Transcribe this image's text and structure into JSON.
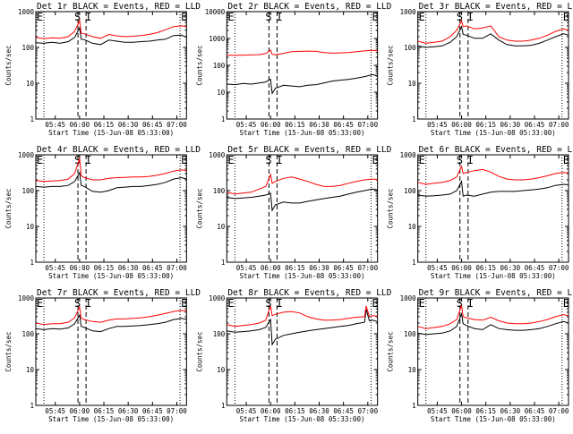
{
  "figure": {
    "colors": {
      "events": "#000000",
      "lld": "#ff0000",
      "background": "#ffffff"
    }
  },
  "chart_data": [
    {
      "type": "line",
      "title": "Det 1r  BLACK = Events, RED = LLD",
      "xlabel": "Start Time (15-Jun-08 05:33:00)",
      "ylabel": "Counts/sec",
      "yscale": "log",
      "ylim": [
        1,
        1000
      ],
      "x_ticks": [
        "05:45",
        "06:00",
        "06:15",
        "06:30",
        "06:45",
        "07:00"
      ],
      "y_ticks": [
        "1",
        "10",
        "100",
        "1000"
      ],
      "x_minutes_from_start": [
        0,
        5,
        10,
        15,
        20,
        24,
        27,
        28,
        30,
        35,
        40,
        45,
        50,
        55,
        60,
        65,
        70,
        75,
        80,
        85,
        90,
        93
      ],
      "series": [
        {
          "name": "Events",
          "color": "#000000",
          "values": [
            135,
            130,
            140,
            130,
            145,
            190,
            350,
            170,
            165,
            130,
            120,
            160,
            150,
            140,
            140,
            145,
            150,
            160,
            170,
            215,
            220,
            190
          ]
        },
        {
          "name": "LLD",
          "color": "#ff0000",
          "values": [
            190,
            175,
            185,
            180,
            200,
            280,
            560,
            250,
            240,
            200,
            180,
            230,
            210,
            200,
            205,
            215,
            230,
            260,
            310,
            380,
            400,
            380
          ]
        }
      ],
      "markers": {
        "E_start": 5,
        "S": 26,
        "I": 31,
        "E_end": 89
      }
    },
    {
      "type": "line",
      "title": "Det 2r  BLACK = Events, RED = LLD",
      "xlabel": "Start Time (15-Jun-08 05:33:00)",
      "ylabel": "Counts/sec",
      "yscale": "log",
      "ylim": [
        1,
        10000
      ],
      "x_ticks": [
        "05:45",
        "06:00",
        "06:15",
        "06:30",
        "06:45",
        "07:00"
      ],
      "y_ticks": [
        "1",
        "10",
        "100",
        "1000",
        "10000"
      ],
      "x_minutes_from_start": [
        0,
        5,
        10,
        15,
        20,
        24,
        27,
        28,
        30,
        35,
        40,
        45,
        50,
        55,
        60,
        65,
        70,
        75,
        80,
        85,
        90,
        93
      ],
      "series": [
        {
          "name": "Events",
          "color": "#000000",
          "values": [
            20,
            19,
            21,
            20,
            22,
            24,
            30,
            9,
            14,
            18,
            17,
            16,
            18,
            19,
            22,
            26,
            28,
            30,
            33,
            38,
            45,
            40
          ]
        },
        {
          "name": "LLD",
          "color": "#ff0000",
          "values": [
            240,
            235,
            240,
            245,
            250,
            275,
            370,
            255,
            250,
            280,
            320,
            330,
            340,
            330,
            300,
            285,
            290,
            300,
            320,
            345,
            360,
            350
          ]
        }
      ],
      "markers": {
        "E_start": 5,
        "S": 26,
        "I": 31,
        "E_end": 89
      }
    },
    {
      "type": "line",
      "title": "Det 3r  BLACK = Events, RED = LLD",
      "xlabel": "Start Time (15-Jun-08 05:33:00)",
      "ylabel": "Counts/sec",
      "yscale": "log",
      "ylim": [
        1,
        1000
      ],
      "x_ticks": [
        "05:45",
        "06:00",
        "06:15",
        "06:30",
        "06:45",
        "07:00"
      ],
      "y_ticks": [
        "1",
        "10",
        "100",
        "1000"
      ],
      "x_minutes_from_start": [
        0,
        5,
        10,
        15,
        20,
        24,
        27,
        28,
        30,
        35,
        40,
        45,
        50,
        55,
        60,
        65,
        70,
        75,
        80,
        85,
        90,
        93
      ],
      "series": [
        {
          "name": "Events",
          "color": "#000000",
          "values": [
            110,
            100,
            105,
            110,
            140,
            200,
            380,
            230,
            220,
            180,
            180,
            240,
            160,
            120,
            110,
            110,
            115,
            130,
            160,
            200,
            240,
            220
          ]
        },
        {
          "name": "LLD",
          "color": "#ff0000",
          "values": [
            150,
            130,
            140,
            150,
            200,
            300,
            560,
            380,
            400,
            330,
            350,
            400,
            200,
            160,
            150,
            150,
            160,
            180,
            220,
            280,
            330,
            300
          ]
        }
      ],
      "markers": {
        "E_start": 5,
        "S": 26,
        "I": 31,
        "E_end": 89
      }
    },
    {
      "type": "line",
      "title": "Det 4r  BLACK = Events, RED = LLD",
      "xlabel": "Start Time (15-Jun-08 05:33:00)",
      "ylabel": "Counts/sec",
      "yscale": "log",
      "ylim": [
        1,
        1000
      ],
      "x_ticks": [
        "05:45",
        "06:00",
        "06:15",
        "06:30",
        "06:45",
        "07:00"
      ],
      "y_ticks": [
        "1",
        "10",
        "100",
        "1000"
      ],
      "x_minutes_from_start": [
        0,
        5,
        10,
        15,
        20,
        24,
        27,
        28,
        30,
        35,
        40,
        45,
        50,
        55,
        60,
        65,
        70,
        75,
        80,
        85,
        90,
        93
      ],
      "series": [
        {
          "name": "Events",
          "color": "#000000",
          "values": [
            130,
            125,
            130,
            130,
            140,
            180,
            320,
            140,
            130,
            95,
            90,
            100,
            120,
            125,
            130,
            130,
            140,
            150,
            170,
            210,
            230,
            210
          ]
        },
        {
          "name": "LLD",
          "color": "#ff0000",
          "values": [
            190,
            180,
            185,
            190,
            210,
            300,
            800,
            260,
            230,
            200,
            200,
            220,
            230,
            235,
            240,
            240,
            250,
            270,
            300,
            350,
            380,
            360
          ]
        }
      ],
      "markers": {
        "E_start": 5,
        "S": 26,
        "I": 31,
        "E_end": 89
      }
    },
    {
      "type": "line",
      "title": "Det 5r  BLACK = Events, RED = LLD",
      "xlabel": "Start Time (15-Jun-08 05:33:00)",
      "ylabel": "Counts/sec",
      "yscale": "log",
      "ylim": [
        1,
        1000
      ],
      "x_ticks": [
        "05:45",
        "06:00",
        "06:15",
        "06:30",
        "06:45",
        "07:00"
      ],
      "y_ticks": [
        "1",
        "10",
        "100",
        "1000"
      ],
      "x_minutes_from_start": [
        0,
        5,
        10,
        15,
        20,
        24,
        27,
        28,
        30,
        35,
        40,
        45,
        50,
        55,
        60,
        65,
        70,
        75,
        80,
        85,
        90,
        93
      ],
      "series": [
        {
          "name": "Events",
          "color": "#000000",
          "values": [
            65,
            60,
            62,
            65,
            70,
            75,
            85,
            28,
            40,
            48,
            45,
            45,
            50,
            55,
            60,
            65,
            70,
            80,
            90,
            100,
            110,
            105
          ]
        },
        {
          "name": "LLD",
          "color": "#ff0000",
          "values": [
            90,
            80,
            85,
            90,
            110,
            130,
            280,
            160,
            180,
            220,
            240,
            210,
            180,
            150,
            130,
            130,
            140,
            160,
            180,
            200,
            210,
            205
          ]
        }
      ],
      "markers": {
        "E_start": 5,
        "S": 26,
        "I": 31,
        "E_end": 89
      }
    },
    {
      "type": "line",
      "title": "Det 6r  BLACK = Events, RED = LLD",
      "xlabel": "Start Time (15-Jun-08 05:33:00)",
      "ylabel": "Counts/sec",
      "yscale": "log",
      "ylim": [
        1,
        1000
      ],
      "x_ticks": [
        "05:45",
        "06:00",
        "06:15",
        "06:30",
        "06:45",
        "07:00"
      ],
      "y_ticks": [
        "1",
        "10",
        "100",
        "1000"
      ],
      "x_minutes_from_start": [
        0,
        5,
        10,
        15,
        20,
        24,
        27,
        28,
        30,
        35,
        40,
        45,
        50,
        55,
        60,
        65,
        70,
        75,
        80,
        85,
        90,
        93
      ],
      "series": [
        {
          "name": "Events",
          "color": "#000000",
          "values": [
            75,
            70,
            72,
            75,
            80,
            100,
            180,
            70,
            75,
            70,
            80,
            90,
            95,
            95,
            95,
            100,
            105,
            110,
            120,
            140,
            150,
            145
          ]
        },
        {
          "name": "LLD",
          "color": "#ff0000",
          "values": [
            170,
            150,
            160,
            170,
            190,
            240,
            480,
            300,
            320,
            360,
            390,
            330,
            250,
            210,
            200,
            200,
            210,
            230,
            260,
            300,
            320,
            310
          ]
        }
      ],
      "markers": {
        "E_start": 5,
        "S": 26,
        "I": 31,
        "E_end": 89
      }
    },
    {
      "type": "line",
      "title": "Det 7r  BLACK = Events, RED = LLD",
      "xlabel": "Start Time (15-Jun-08 05:33:00)",
      "ylabel": "Counts/sec",
      "yscale": "log",
      "ylim": [
        1,
        1000
      ],
      "x_ticks": [
        "05:45",
        "06:00",
        "06:15",
        "06:30",
        "06:45",
        "07:00"
      ],
      "y_ticks": [
        "1",
        "10",
        "100",
        "1000"
      ],
      "x_minutes_from_start": [
        0,
        5,
        10,
        15,
        20,
        24,
        27,
        28,
        30,
        35,
        40,
        45,
        50,
        55,
        60,
        65,
        70,
        75,
        80,
        85,
        90,
        93
      ],
      "series": [
        {
          "name": "Events",
          "color": "#000000",
          "values": [
            140,
            130,
            140,
            135,
            145,
            190,
            330,
            160,
            150,
            120,
            115,
            140,
            160,
            160,
            165,
            170,
            180,
            190,
            210,
            250,
            270,
            250
          ]
        },
        {
          "name": "LLD",
          "color": "#ff0000",
          "values": [
            200,
            180,
            190,
            190,
            210,
            280,
            560,
            270,
            250,
            220,
            210,
            240,
            260,
            260,
            270,
            280,
            300,
            330,
            370,
            420,
            450,
            430
          ]
        }
      ],
      "markers": {
        "E_start": 5,
        "S": 26,
        "I": 31,
        "E_end": 89
      }
    },
    {
      "type": "line",
      "title": "Det 8r  BLACK = Events, RED = LLD",
      "xlabel": "Start Time (15-Jun-08 05:33:00)",
      "ylabel": "Counts/sec",
      "yscale": "log",
      "ylim": [
        1,
        1000
      ],
      "x_ticks": [
        "05:45",
        "06:00",
        "06:15",
        "06:30",
        "06:45",
        "07:00"
      ],
      "y_ticks": [
        "1",
        "10",
        "100",
        "1000"
      ],
      "x_minutes_from_start": [
        0,
        5,
        10,
        15,
        20,
        24,
        27,
        28,
        30,
        35,
        40,
        45,
        50,
        55,
        60,
        65,
        70,
        75,
        80,
        85,
        86,
        88,
        90,
        93
      ],
      "series": [
        {
          "name": "Events",
          "color": "#000000",
          "values": [
            120,
            110,
            115,
            120,
            130,
            150,
            250,
            50,
            70,
            90,
            100,
            110,
            120,
            130,
            140,
            150,
            160,
            170,
            190,
            210,
            480,
            230,
            240,
            220
          ]
        },
        {
          "name": "LLD",
          "color": "#ff0000",
          "values": [
            180,
            160,
            170,
            180,
            200,
            240,
            600,
            320,
            350,
            400,
            420,
            380,
            300,
            260,
            240,
            240,
            250,
            270,
            290,
            300,
            600,
            300,
            320,
            310
          ]
        }
      ],
      "markers": {
        "E_start": 5,
        "S": 26,
        "I": 31,
        "E_end": 89
      }
    },
    {
      "type": "line",
      "title": "Det 9r  BLACK = Events, RED = LLD",
      "xlabel": "Start Time (15-Jun-08 05:33:00)",
      "ylabel": "Counts/sec",
      "yscale": "log",
      "ylim": [
        1,
        1000
      ],
      "x_ticks": [
        "05:45",
        "06:00",
        "06:15",
        "06:30",
        "06:45",
        "07:00"
      ],
      "y_ticks": [
        "1",
        "10",
        "100",
        "1000"
      ],
      "x_minutes_from_start": [
        0,
        5,
        10,
        15,
        20,
        24,
        27,
        28,
        30,
        35,
        40,
        45,
        50,
        55,
        60,
        65,
        70,
        75,
        80,
        85,
        90,
        93
      ],
      "series": [
        {
          "name": "Events",
          "color": "#000000",
          "values": [
            105,
            95,
            100,
            105,
            120,
            160,
            360,
            190,
            170,
            140,
            130,
            180,
            140,
            130,
            125,
            125,
            130,
            140,
            160,
            190,
            220,
            200
          ]
        },
        {
          "name": "LLD",
          "color": "#ff0000",
          "values": [
            160,
            140,
            150,
            160,
            190,
            250,
            620,
            300,
            280,
            250,
            240,
            290,
            230,
            200,
            190,
            190,
            200,
            220,
            250,
            300,
            340,
            320
          ]
        }
      ],
      "markers": {
        "E_start": 5,
        "S": 26,
        "I": 31,
        "E_end": 89
      }
    }
  ]
}
